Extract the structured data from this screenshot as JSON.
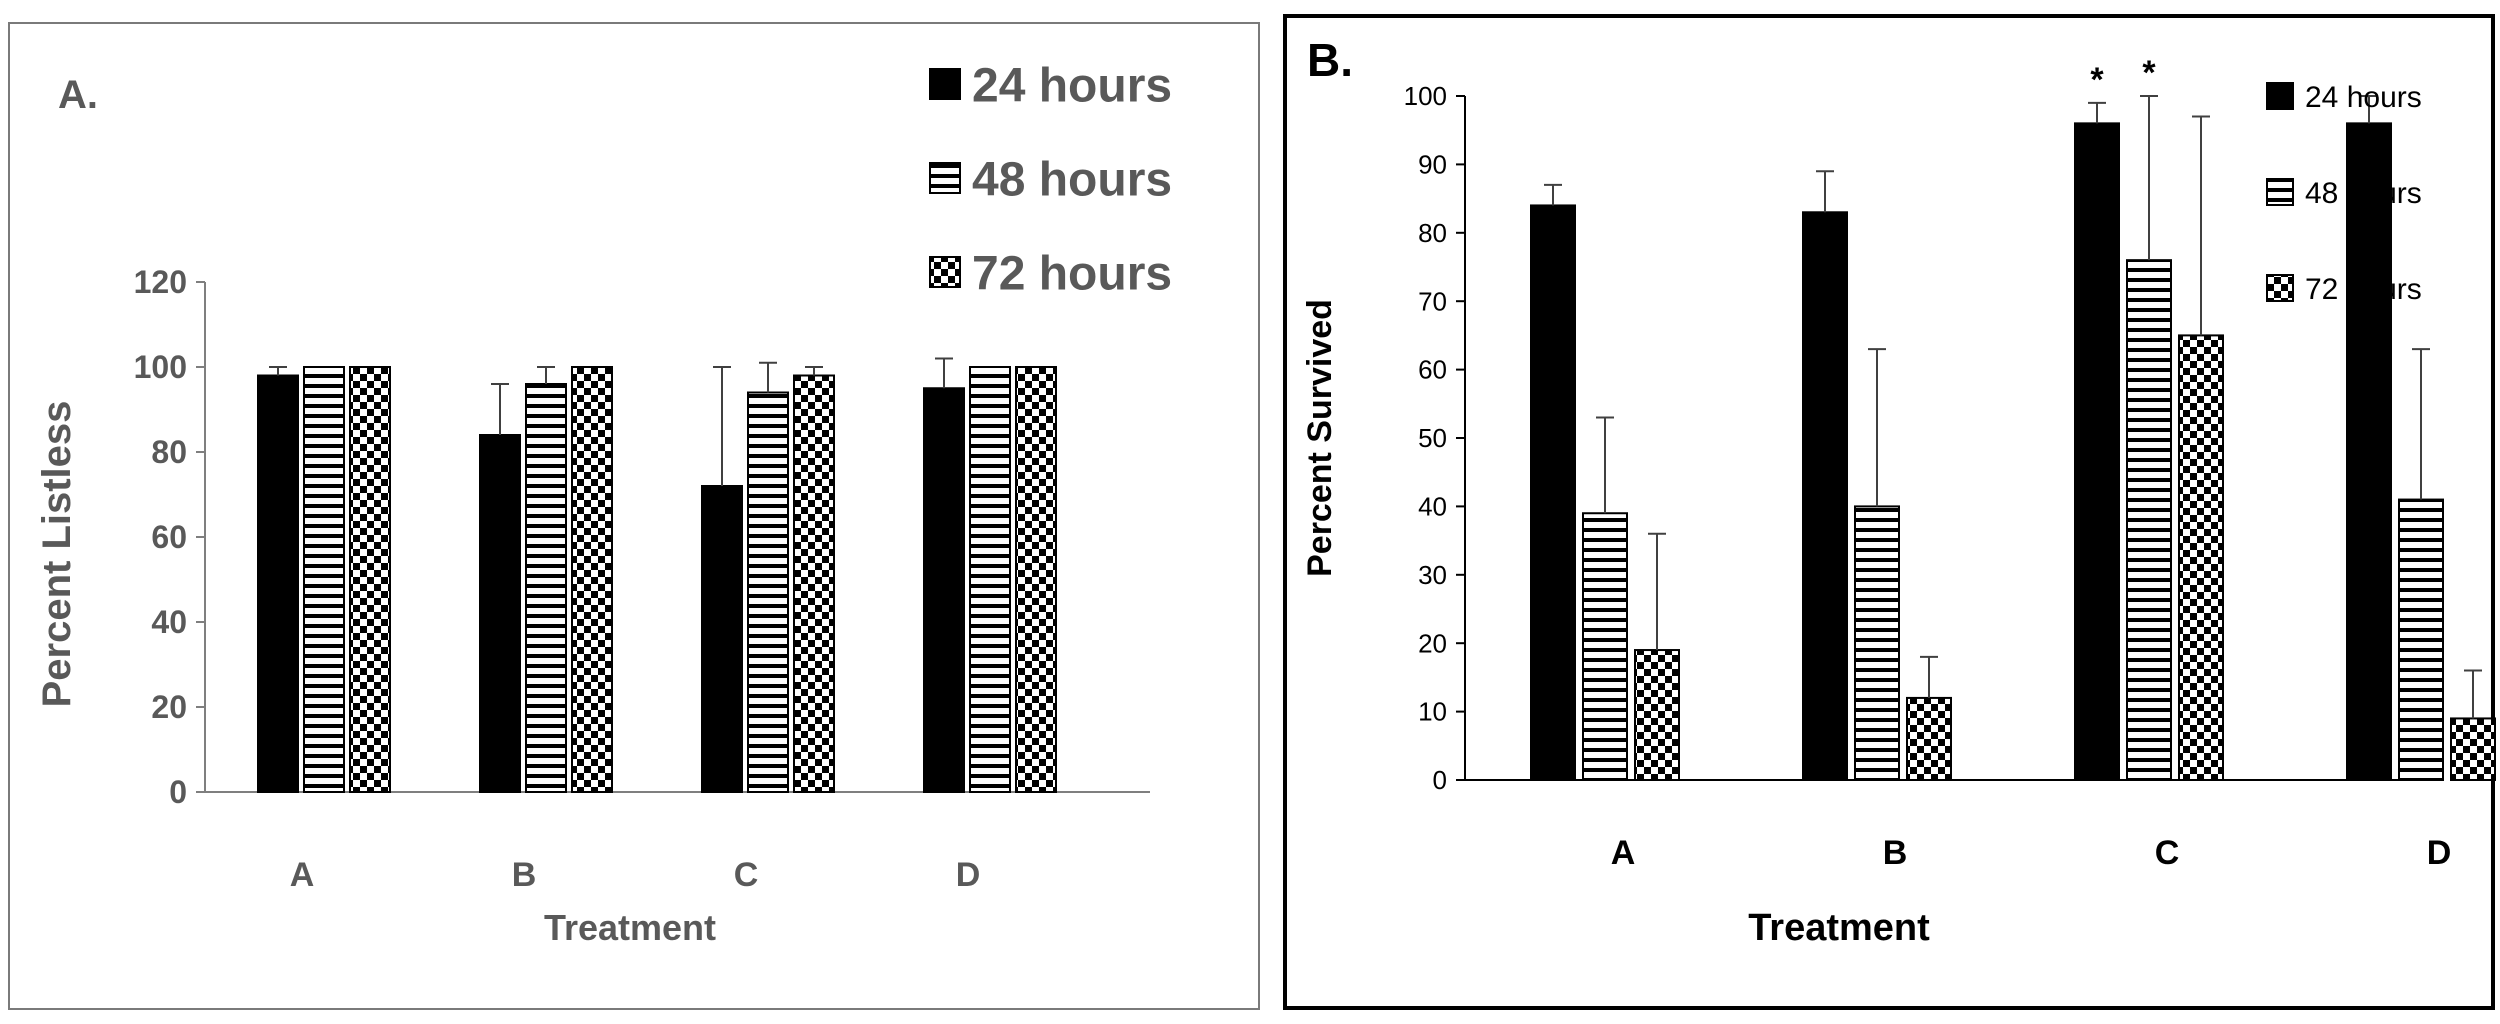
{
  "chart_data": [
    {
      "type": "bar",
      "panel_label": "A.",
      "title": "",
      "xlabel": "Treatment",
      "ylabel": "Percent Listless",
      "ylim": [
        0,
        120
      ],
      "yticks": [
        "0",
        "20",
        "40",
        "60",
        "80",
        "100",
        "120"
      ],
      "categories": [
        "A",
        "B",
        "C",
        "D"
      ],
      "legend_position": "top-right",
      "grid": false,
      "series": [
        {
          "name": "24 hours",
          "pattern": "solid",
          "values": [
            98,
            84,
            72,
            95
          ],
          "errors": [
            2,
            12,
            28,
            7
          ]
        },
        {
          "name": "48 hours",
          "pattern": "horizontal-stripes",
          "values": [
            100,
            96,
            94,
            100
          ],
          "errors": [
            0,
            4,
            7,
            0
          ]
        },
        {
          "name": "72 hours",
          "pattern": "checkerboard",
          "values": [
            100,
            100,
            98,
            100
          ],
          "errors": [
            0,
            0,
            2,
            0
          ]
        }
      ]
    },
    {
      "type": "bar",
      "panel_label": "B.",
      "title": "",
      "xlabel": "Treatment",
      "ylabel": "Percent Survived",
      "ylim": [
        0,
        100
      ],
      "yticks": [
        "0",
        "10",
        "20",
        "30",
        "40",
        "50",
        "60",
        "70",
        "80",
        "90",
        "100"
      ],
      "categories": [
        "A",
        "B",
        "C",
        "D"
      ],
      "legend_position": "top-right",
      "grid": false,
      "significance_marker": "*",
      "series": [
        {
          "name": "24 hours",
          "pattern": "solid",
          "values": [
            84,
            83,
            96,
            96
          ],
          "errors": [
            3,
            6,
            3,
            4
          ],
          "significant": [
            false,
            false,
            true,
            false
          ]
        },
        {
          "name": "48 hours",
          "pattern": "horizontal-stripes",
          "values": [
            39,
            40,
            76,
            41
          ],
          "errors": [
            14,
            23,
            24,
            22
          ],
          "significant": [
            false,
            false,
            true,
            false
          ]
        },
        {
          "name": "72 hours",
          "pattern": "checkerboard",
          "values": [
            19,
            12,
            65,
            9
          ],
          "errors": [
            17,
            6,
            32,
            7
          ],
          "significant": [
            false,
            false,
            false,
            false
          ]
        }
      ]
    }
  ]
}
